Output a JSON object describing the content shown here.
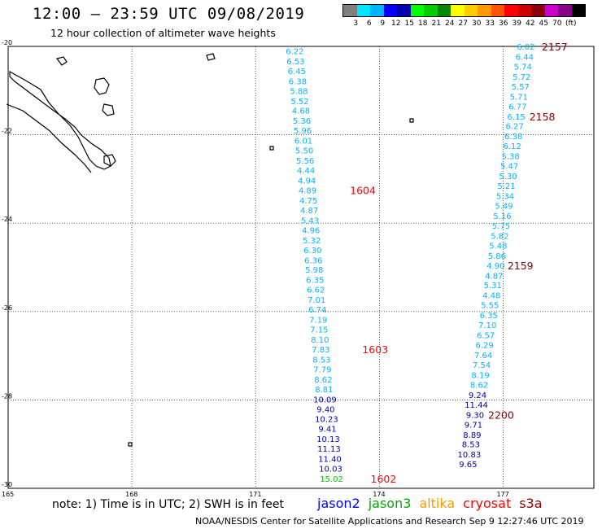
{
  "header": {
    "title": "12:00 – 23:59 UTC 09/08/2019",
    "subtitle": "12 hour collection of altimeter wave heights"
  },
  "color_legend": {
    "colors": [
      "#7f7f7f",
      "#00e5ff",
      "#00b4ff",
      "#0000ff",
      "#0000b0",
      "#00ff00",
      "#00cc00",
      "#008800",
      "#ffff00",
      "#ffcc00",
      "#ff9900",
      "#ff5500",
      "#ff0000",
      "#cc0000",
      "#880000",
      "#cc00cc",
      "#880088",
      "#000000"
    ],
    "labels": [
      "3",
      "6",
      "9",
      "12",
      "15",
      "18",
      "21",
      "24",
      "27",
      "30",
      "33",
      "36",
      "39",
      "42",
      "45",
      "70"
    ],
    "unit": "(ft)"
  },
  "axes": {
    "lat_labels": [
      {
        "value": -20,
        "text": "-20"
      },
      {
        "value": -22,
        "text": "-22"
      },
      {
        "value": -24,
        "text": "-24"
      },
      {
        "value": -26,
        "text": "-26"
      },
      {
        "value": -28,
        "text": "-28"
      },
      {
        "value": -30,
        "text": "-30"
      }
    ],
    "lon_labels": [
      {
        "value": 165,
        "text": "165"
      },
      {
        "value": 168,
        "text": "168"
      },
      {
        "value": 171,
        "text": "171"
      },
      {
        "value": 174,
        "text": "174"
      },
      {
        "value": 177,
        "text": "177"
      }
    ]
  },
  "tracks": {
    "left_track": {
      "points": [
        {
          "lon": 171.95,
          "lat": -20.1,
          "v": "6.22",
          "c": "#00b4ff"
        },
        {
          "lon": 171.97,
          "lat": -20.33,
          "v": "6.53",
          "c": "#00b4ff"
        },
        {
          "lon": 172.0,
          "lat": -20.55,
          "v": "6.45",
          "c": "#00b4ff"
        },
        {
          "lon": 172.02,
          "lat": -20.78,
          "v": "6.38",
          "c": "#00b4ff"
        },
        {
          "lon": 172.05,
          "lat": -21.0,
          "v": "5.88",
          "c": "#00b4ff"
        },
        {
          "lon": 172.07,
          "lat": -21.23,
          "v": "5.52",
          "c": "#00b4ff"
        },
        {
          "lon": 172.1,
          "lat": -21.45,
          "v": "4.68",
          "c": "#00b4ff"
        },
        {
          "lon": 172.12,
          "lat": -21.68,
          "v": "5.36",
          "c": "#00b4ff"
        },
        {
          "lon": 172.14,
          "lat": -21.9,
          "v": "5.96",
          "c": "#00b4ff"
        },
        {
          "lon": 172.16,
          "lat": -22.13,
          "v": "6.01",
          "c": "#00b4ff"
        },
        {
          "lon": 172.18,
          "lat": -22.35,
          "v": "5.50",
          "c": "#00b4ff"
        },
        {
          "lon": 172.2,
          "lat": -22.58,
          "v": "5.56",
          "c": "#00b4ff"
        },
        {
          "lon": 172.22,
          "lat": -22.8,
          "v": "4.44",
          "c": "#00b4ff"
        },
        {
          "lon": 172.24,
          "lat": -23.03,
          "v": "4.94",
          "c": "#00b4ff"
        },
        {
          "lon": 172.26,
          "lat": -23.25,
          "v": "4.89",
          "c": "#00b4ff"
        },
        {
          "lon": 172.28,
          "lat": -23.48,
          "v": "4.75",
          "c": "#00b4ff"
        },
        {
          "lon": 172.3,
          "lat": -23.7,
          "v": "4.87",
          "c": "#00b4ff"
        },
        {
          "lon": 172.32,
          "lat": -23.93,
          "v": "5.43",
          "c": "#00b4ff"
        },
        {
          "lon": 172.34,
          "lat": -24.15,
          "v": "4.96",
          "c": "#00b4ff"
        },
        {
          "lon": 172.36,
          "lat": -24.38,
          "v": "5.32",
          "c": "#00b4ff"
        },
        {
          "lon": 172.38,
          "lat": -24.6,
          "v": "6.30",
          "c": "#00b4ff"
        },
        {
          "lon": 172.4,
          "lat": -24.83,
          "v": "6.36",
          "c": "#00b4ff"
        },
        {
          "lon": 172.42,
          "lat": -25.05,
          "v": "5.98",
          "c": "#00b4ff"
        },
        {
          "lon": 172.44,
          "lat": -25.28,
          "v": "6.35",
          "c": "#00b4ff"
        },
        {
          "lon": 172.46,
          "lat": -25.5,
          "v": "6.62",
          "c": "#00b4ff"
        },
        {
          "lon": 172.48,
          "lat": -25.73,
          "v": "7.01",
          "c": "#00b4ff"
        },
        {
          "lon": 172.5,
          "lat": -25.95,
          "v": "6.74",
          "c": "#00b4ff"
        },
        {
          "lon": 172.52,
          "lat": -26.18,
          "v": "7.19",
          "c": "#00b4ff"
        },
        {
          "lon": 172.54,
          "lat": -26.4,
          "v": "7.15",
          "c": "#00b4ff"
        },
        {
          "lon": 172.56,
          "lat": -26.63,
          "v": "8.10",
          "c": "#00b4ff"
        },
        {
          "lon": 172.58,
          "lat": -26.85,
          "v": "7.83",
          "c": "#00b4ff"
        },
        {
          "lon": 172.6,
          "lat": -27.08,
          "v": "8.53",
          "c": "#00b4ff"
        },
        {
          "lon": 172.62,
          "lat": -27.3,
          "v": "7.79",
          "c": "#00b4ff"
        },
        {
          "lon": 172.64,
          "lat": -27.53,
          "v": "8.62",
          "c": "#00b4ff"
        },
        {
          "lon": 172.66,
          "lat": -27.75,
          "v": "8.81",
          "c": "#00b4ff"
        },
        {
          "lon": 172.68,
          "lat": -27.98,
          "v": "10.09",
          "c": "#0000b0"
        },
        {
          "lon": 172.7,
          "lat": -28.2,
          "v": "9.40",
          "c": "#0000b0"
        },
        {
          "lon": 172.72,
          "lat": -28.43,
          "v": "10.23",
          "c": "#0000b0"
        },
        {
          "lon": 172.74,
          "lat": -28.65,
          "v": "9.41",
          "c": "#0000b0"
        },
        {
          "lon": 172.76,
          "lat": -28.88,
          "v": "10.13",
          "c": "#0000b0"
        },
        {
          "lon": 172.78,
          "lat": -29.1,
          "v": "11.13",
          "c": "#0000b0"
        },
        {
          "lon": 172.8,
          "lat": -29.33,
          "v": "11.40",
          "c": "#0000b0"
        },
        {
          "lon": 172.82,
          "lat": -29.55,
          "v": "10.03",
          "c": "#0000b0"
        },
        {
          "lon": 172.84,
          "lat": -29.78,
          "v": "15.02",
          "c": "#00cc00"
        }
      ],
      "time_labels": [
        {
          "lon": 173.6,
          "lat": -23.25,
          "text": "1604",
          "c": "#ff0000"
        },
        {
          "lon": 173.9,
          "lat": -26.85,
          "text": "1603",
          "c": "#ff0000"
        },
        {
          "lon": 174.1,
          "lat": -29.78,
          "text": "1602",
          "c": "#ff0000"
        }
      ]
    },
    "right_track": {
      "points": [
        {
          "lon": 177.55,
          "lat": -20.0,
          "v": "6.02",
          "c": "#00b4ff"
        },
        {
          "lon": 177.52,
          "lat": -20.23,
          "v": "6.44",
          "c": "#00b4ff"
        },
        {
          "lon": 177.48,
          "lat": -20.45,
          "v": "5.74",
          "c": "#00b4ff"
        },
        {
          "lon": 177.45,
          "lat": -20.68,
          "v": "5.72",
          "c": "#00b4ff"
        },
        {
          "lon": 177.42,
          "lat": -20.9,
          "v": "5.57",
          "c": "#00b4ff"
        },
        {
          "lon": 177.38,
          "lat": -21.13,
          "v": "5.71",
          "c": "#00b4ff"
        },
        {
          "lon": 177.35,
          "lat": -21.35,
          "v": "6.77",
          "c": "#00b4ff"
        },
        {
          "lon": 177.32,
          "lat": -21.58,
          "v": "6.15",
          "c": "#00b4ff"
        },
        {
          "lon": 177.28,
          "lat": -21.8,
          "v": "6.27",
          "c": "#00b4ff"
        },
        {
          "lon": 177.25,
          "lat": -22.03,
          "v": "6.38",
          "c": "#00b4ff"
        },
        {
          "lon": 177.22,
          "lat": -22.25,
          "v": "6.12",
          "c": "#00b4ff"
        },
        {
          "lon": 177.18,
          "lat": -22.48,
          "v": "5.38",
          "c": "#00b4ff"
        },
        {
          "lon": 177.15,
          "lat": -22.7,
          "v": "5.47",
          "c": "#00b4ff"
        },
        {
          "lon": 177.12,
          "lat": -22.93,
          "v": "5.30",
          "c": "#00b4ff"
        },
        {
          "lon": 177.08,
          "lat": -23.15,
          "v": "5.21",
          "c": "#00b4ff"
        },
        {
          "lon": 177.05,
          "lat": -23.38,
          "v": "5.34",
          "c": "#00b4ff"
        },
        {
          "lon": 177.02,
          "lat": -23.6,
          "v": "5.49",
          "c": "#00b4ff"
        },
        {
          "lon": 176.98,
          "lat": -23.83,
          "v": "5.16",
          "c": "#00b4ff"
        },
        {
          "lon": 176.95,
          "lat": -24.05,
          "v": "5.75",
          "c": "#00b4ff"
        },
        {
          "lon": 176.92,
          "lat": -24.28,
          "v": "5.82",
          "c": "#00b4ff"
        },
        {
          "lon": 176.88,
          "lat": -24.5,
          "v": "5.48",
          "c": "#00b4ff"
        },
        {
          "lon": 176.85,
          "lat": -24.73,
          "v": "5.86",
          "c": "#00b4ff"
        },
        {
          "lon": 176.82,
          "lat": -24.95,
          "v": "4.90",
          "c": "#00b4ff"
        },
        {
          "lon": 176.78,
          "lat": -25.18,
          "v": "4.87",
          "c": "#00b4ff"
        },
        {
          "lon": 176.75,
          "lat": -25.4,
          "v": "5.31",
          "c": "#00b4ff"
        },
        {
          "lon": 176.72,
          "lat": -25.63,
          "v": "4.48",
          "c": "#00b4ff"
        },
        {
          "lon": 176.68,
          "lat": -25.85,
          "v": "5.55",
          "c": "#00b4ff"
        },
        {
          "lon": 176.65,
          "lat": -26.08,
          "v": "6.35",
          "c": "#00b4ff"
        },
        {
          "lon": 176.62,
          "lat": -26.3,
          "v": "7.10",
          "c": "#00b4ff"
        },
        {
          "lon": 176.58,
          "lat": -26.53,
          "v": "6.57",
          "c": "#00b4ff"
        },
        {
          "lon": 176.55,
          "lat": -26.75,
          "v": "6.29",
          "c": "#00b4ff"
        },
        {
          "lon": 176.52,
          "lat": -26.98,
          "v": "7.64",
          "c": "#00b4ff"
        },
        {
          "lon": 176.48,
          "lat": -27.2,
          "v": "7.54",
          "c": "#00b4ff"
        },
        {
          "lon": 176.45,
          "lat": -27.43,
          "v": "8.19",
          "c": "#00b4ff"
        },
        {
          "lon": 176.42,
          "lat": -27.65,
          "v": "8.62",
          "c": "#00b4ff"
        },
        {
          "lon": 176.38,
          "lat": -27.88,
          "v": "9.24",
          "c": "#0000b0"
        },
        {
          "lon": 176.35,
          "lat": -28.1,
          "v": "11.44",
          "c": "#0000b0"
        },
        {
          "lon": 176.32,
          "lat": -28.33,
          "v": "9.30",
          "c": "#0000b0"
        },
        {
          "lon": 176.28,
          "lat": -28.55,
          "v": "9.71",
          "c": "#0000b0"
        },
        {
          "lon": 176.25,
          "lat": -28.78,
          "v": "8.89",
          "c": "#0000b0"
        },
        {
          "lon": 176.22,
          "lat": -29.0,
          "v": "8.53",
          "c": "#0000b0"
        },
        {
          "lon": 176.18,
          "lat": -29.23,
          "v": "10.83",
          "c": "#0000b0"
        },
        {
          "lon": 176.15,
          "lat": -29.45,
          "v": "9.65",
          "c": "#0000b0"
        }
      ],
      "time_labels": [
        {
          "lon": 178.25,
          "lat": -20.0,
          "text": "2157",
          "c": "#880000"
        },
        {
          "lon": 177.95,
          "lat": -21.58,
          "text": "2158",
          "c": "#880000"
        },
        {
          "lon": 177.42,
          "lat": -24.95,
          "text": "2159",
          "c": "#880000"
        },
        {
          "lon": 176.95,
          "lat": -28.33,
          "text": "2200",
          "c": "#880000"
        }
      ]
    }
  },
  "note": "note: 1) Time is in UTC; 2) SWH is in feet",
  "satellites": [
    {
      "name": "jason2",
      "color": "#0000ff"
    },
    {
      "name": "jason3",
      "color": "#00aa00"
    },
    {
      "name": "altika",
      "color": "#ff9900"
    },
    {
      "name": "cryosat",
      "color": "#ff0000"
    },
    {
      "name": "s3a",
      "color": "#880000"
    }
  ],
  "footer": "NOAA/NESDIS Center for Satellite Applications and Research   Sep  9 12:27:46 UTC 2019"
}
